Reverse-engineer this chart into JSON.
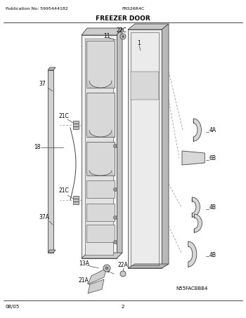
{
  "title": "FREEZER DOOR",
  "pub_no": "Publication No: 5995444182",
  "model": "FRS26R4C",
  "diagram_code": "N55FACBBB4",
  "date": "08/05",
  "page": "2",
  "bg_color": "#ffffff",
  "line_color": "#444444",
  "text_color": "#000000",
  "gray_fill": "#e8e8e8",
  "dark_gray": "#cccccc",
  "mid_gray": "#d8d8d8"
}
